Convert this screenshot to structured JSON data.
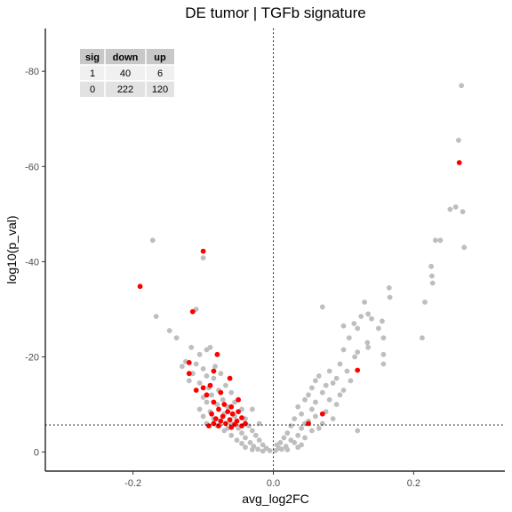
{
  "chart_data": {
    "type": "scatter",
    "title": "DE tumor | TGFb signature",
    "xlabel": "avg_log2FC",
    "ylabel": "log10(p_val)",
    "xlim": [
      -0.325,
      0.33
    ],
    "ylim": [
      4,
      -89
    ],
    "x_ticks": [
      -0.2,
      0.0,
      0.2
    ],
    "x_tick_labels": [
      "-0.2",
      "0.0",
      "0.2"
    ],
    "y_ticks": [
      0,
      -20,
      -40,
      -60,
      -80
    ],
    "y_tick_labels": [
      "0",
      "-20",
      "-40",
      "-60",
      "-80"
    ],
    "y_axis_reversed": true,
    "grid": false,
    "reference_lines": {
      "vline_x": 0.0,
      "hline_y": -5.7,
      "style": "dotted"
    },
    "colors": {
      "not_significant": "#bebebe",
      "significant": "#ff0000"
    },
    "table": {
      "headers": [
        "sig",
        "down",
        "up"
      ],
      "rows": [
        [
          "1",
          "40",
          "6"
        ],
        [
          "0",
          "222",
          "120"
        ]
      ]
    },
    "series": [
      {
        "sig": 0,
        "points": [
          [
            0.268,
            -77
          ],
          [
            0.264,
            -65.5
          ],
          [
            0.26,
            -51.5
          ],
          [
            0.252,
            -51
          ],
          [
            0.27,
            -50.5
          ],
          [
            0.231,
            -44.5
          ],
          [
            0.238,
            -44.5
          ],
          [
            0.272,
            -43
          ],
          [
            0.225,
            -39
          ],
          [
            0.226,
            -37
          ],
          [
            0.227,
            -35.5
          ],
          [
            0.216,
            -31.5
          ],
          [
            0.212,
            -24
          ],
          [
            0.165,
            -34.5
          ],
          [
            0.166,
            -32.5
          ],
          [
            0.13,
            -31.5
          ],
          [
            0.135,
            -29
          ],
          [
            0.125,
            -28.5
          ],
          [
            0.14,
            -28
          ],
          [
            0.155,
            -27.5
          ],
          [
            0.115,
            -27
          ],
          [
            0.1,
            -26.5
          ],
          [
            0.12,
            -26
          ],
          [
            0.15,
            -26
          ],
          [
            0.07,
            -30.5
          ],
          [
            0.157,
            -24
          ],
          [
            0.108,
            -24
          ],
          [
            0.134,
            -23
          ],
          [
            0.135,
            -22
          ],
          [
            0.1,
            -21.5
          ],
          [
            0.12,
            -21
          ],
          [
            0.157,
            -20.5
          ],
          [
            0.116,
            -20
          ],
          [
            0.157,
            -18.5
          ],
          [
            0.095,
            -18.5
          ],
          [
            0.08,
            -17
          ],
          [
            0.105,
            -17
          ],
          [
            0.065,
            -16
          ],
          [
            0.09,
            -15.5
          ],
          [
            0.06,
            -15
          ],
          [
            0.085,
            -14.5
          ],
          [
            0.075,
            -14
          ],
          [
            0.055,
            -13.5
          ],
          [
            0.1,
            -13
          ],
          [
            0.095,
            -12
          ],
          [
            0.07,
            -12.5
          ],
          [
            0.05,
            -12
          ],
          [
            0.045,
            -11
          ],
          [
            0.08,
            -11
          ],
          [
            0.06,
            -10.5
          ],
          [
            0.09,
            -10
          ],
          [
            0.035,
            -9.5
          ],
          [
            0.055,
            -9
          ],
          [
            0.075,
            -8.5
          ],
          [
            0.04,
            -8
          ],
          [
            0.06,
            -7.5
          ],
          [
            0.03,
            -7
          ],
          [
            0.05,
            -6.5
          ],
          [
            0.07,
            -6
          ],
          [
            0.025,
            -5.5
          ],
          [
            0.04,
            -5
          ],
          [
            0.055,
            -4.5
          ],
          [
            0.02,
            -4
          ],
          [
            0.035,
            -3.5
          ],
          [
            0.015,
            -3
          ],
          [
            0.045,
            -3
          ],
          [
            0.025,
            -2.5
          ],
          [
            0.01,
            -2
          ],
          [
            0.03,
            -2
          ],
          [
            0.005,
            -1.5
          ],
          [
            0.018,
            -1.2
          ],
          [
            0.04,
            -1.5
          ],
          [
            0.008,
            -0.8
          ],
          [
            0.02,
            -0.5
          ],
          [
            0.003,
            -0.3
          ],
          [
            0.012,
            -0.6
          ],
          [
            0.035,
            -1
          ],
          [
            0.12,
            -4.5
          ],
          [
            0.065,
            -5
          ],
          [
            0.085,
            -7
          ],
          [
            0.045,
            -6
          ],
          [
            0.11,
            -15
          ],
          [
            -0.172,
            -44.5
          ],
          [
            -0.167,
            -28.5
          ],
          [
            -0.148,
            -25.5
          ],
          [
            -0.138,
            -24
          ],
          [
            -0.1,
            -40.8
          ],
          [
            -0.11,
            -30
          ],
          [
            -0.117,
            -22
          ],
          [
            -0.09,
            -22
          ],
          [
            -0.095,
            -21.5
          ],
          [
            -0.105,
            -20.5
          ],
          [
            -0.125,
            -19
          ],
          [
            -0.13,
            -18
          ],
          [
            -0.11,
            -18.5
          ],
          [
            -0.083,
            -18
          ],
          [
            -0.1,
            -17.5
          ],
          [
            -0.115,
            -16.5
          ],
          [
            -0.095,
            -16
          ],
          [
            -0.075,
            -16.5
          ],
          [
            -0.085,
            -15.5
          ],
          [
            -0.12,
            -15
          ],
          [
            -0.105,
            -14.5
          ],
          [
            -0.068,
            -14
          ],
          [
            -0.092,
            -13.5
          ],
          [
            -0.078,
            -13
          ],
          [
            -0.11,
            -13
          ],
          [
            -0.06,
            -12.5
          ],
          [
            -0.088,
            -12
          ],
          [
            -0.1,
            -11.5
          ],
          [
            -0.072,
            -11
          ],
          [
            -0.055,
            -10.5
          ],
          [
            -0.095,
            -10.5
          ],
          [
            -0.08,
            -10
          ],
          [
            -0.065,
            -9.5
          ],
          [
            -0.105,
            -9
          ],
          [
            -0.045,
            -9
          ],
          [
            -0.09,
            -8.5
          ],
          [
            -0.07,
            -8
          ],
          [
            -0.055,
            -7.5
          ],
          [
            -0.085,
            -7
          ],
          [
            -0.04,
            -7
          ],
          [
            -0.075,
            -6.5
          ],
          [
            -0.06,
            -6
          ],
          [
            -0.095,
            -6
          ],
          [
            -0.035,
            -5.5
          ],
          [
            -0.05,
            -5
          ],
          [
            -0.07,
            -4.5
          ],
          [
            -0.03,
            -4.5
          ],
          [
            -0.045,
            -4
          ],
          [
            -0.06,
            -3.5
          ],
          [
            -0.025,
            -3.5
          ],
          [
            -0.04,
            -3
          ],
          [
            -0.052,
            -2.5
          ],
          [
            -0.02,
            -2.5
          ],
          [
            -0.033,
            -2
          ],
          [
            -0.045,
            -1.8
          ],
          [
            -0.015,
            -1.5
          ],
          [
            -0.028,
            -1.2
          ],
          [
            -0.04,
            -1
          ],
          [
            -0.01,
            -0.8
          ],
          [
            -0.022,
            -0.6
          ],
          [
            -0.005,
            -0.3
          ],
          [
            -0.015,
            -0.2
          ],
          [
            -0.03,
            -0.5
          ],
          [
            -0.08,
            -5.5
          ],
          [
            -0.1,
            -7.5
          ],
          [
            -0.065,
            -5
          ],
          [
            -0.03,
            -9
          ],
          [
            -0.02,
            -6
          ]
        ]
      },
      {
        "sig": 1,
        "points": [
          [
            0.265,
            -60.8
          ],
          [
            0.12,
            -17.2
          ],
          [
            0.07,
            -8
          ],
          [
            0.05,
            -6
          ],
          [
            -0.19,
            -34.8
          ],
          [
            -0.1,
            -42.2
          ],
          [
            -0.115,
            -29.5
          ],
          [
            -0.08,
            -20.5
          ],
          [
            -0.085,
            -17
          ],
          [
            -0.12,
            -18.8
          ],
          [
            -0.12,
            -16.5
          ],
          [
            -0.062,
            -15.5
          ],
          [
            -0.11,
            -13
          ],
          [
            -0.09,
            -14
          ],
          [
            -0.075,
            -12.5
          ],
          [
            -0.1,
            -13.5
          ],
          [
            -0.095,
            -12
          ],
          [
            -0.05,
            -11
          ],
          [
            -0.085,
            -10.5
          ],
          [
            -0.07,
            -10
          ],
          [
            -0.06,
            -9.5
          ],
          [
            -0.078,
            -9
          ],
          [
            -0.065,
            -8.5
          ],
          [
            -0.05,
            -8.5
          ],
          [
            -0.088,
            -8
          ],
          [
            -0.058,
            -8
          ],
          [
            -0.072,
            -7.5
          ],
          [
            -0.045,
            -7.2
          ],
          [
            -0.082,
            -7
          ],
          [
            -0.062,
            -6.8
          ],
          [
            -0.052,
            -6.5
          ],
          [
            -0.075,
            -6.5
          ],
          [
            -0.04,
            -6
          ],
          [
            -0.068,
            -6
          ],
          [
            -0.085,
            -6
          ],
          [
            -0.055,
            -5.8
          ],
          [
            -0.078,
            -5.5
          ],
          [
            -0.045,
            -5.5
          ],
          [
            -0.06,
            -5.2
          ],
          [
            -0.092,
            -5.5
          ]
        ]
      }
    ]
  }
}
